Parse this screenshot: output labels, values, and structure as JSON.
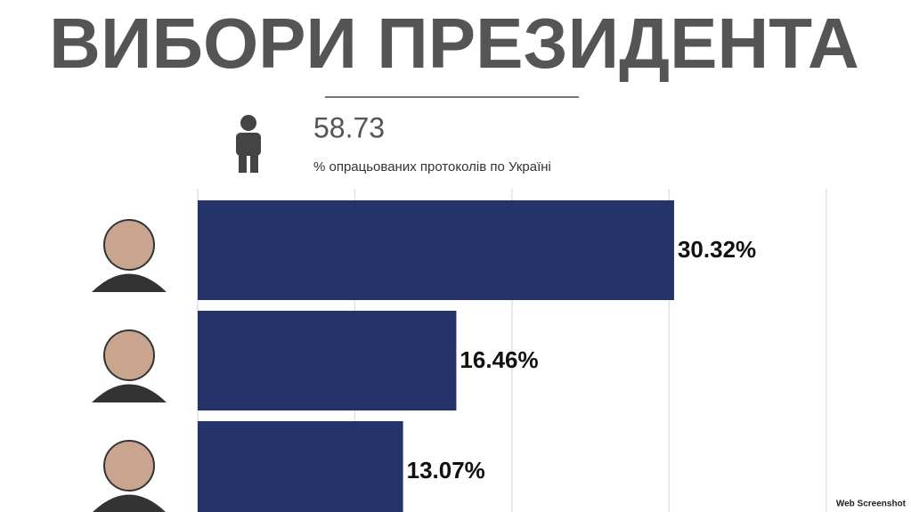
{
  "chart_data": {
    "type": "hbar",
    "title": "ВИБОРИ ПРЕЗИДЕНТА",
    "annotation": "58.73",
    "subtitle": "% опрацьованих протоколів по Україні",
    "categories": [
      null,
      null,
      null
    ],
    "values": [
      30.32,
      16.46,
      13.07
    ],
    "value_labels": [
      "30.32%",
      "16.46%",
      "13.07%"
    ],
    "color": "#243369",
    "xlim": [
      0,
      45
    ],
    "xticks": [
      0,
      10,
      20,
      30,
      40
    ],
    "grid": true,
    "watermark": "Web Screenshot"
  }
}
